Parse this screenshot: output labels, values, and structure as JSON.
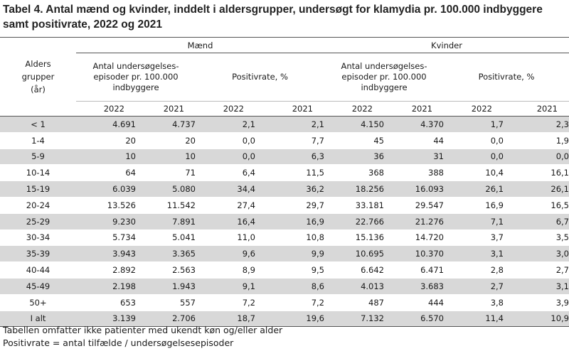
{
  "title": "Tabel 4. Antal mænd og kvinder, inddelt i aldersgrupper, undersøgt for klamydia pr. 100.000 indbyggere samt positivrate, 2022 og 2021",
  "headers": {
    "men": "Mænd",
    "women": "Kvinder",
    "age_group": "Alders grupper (år)",
    "episodes": "Antal undersøgelses-episoder pr. 100.000 indbyggere",
    "positivrate": "Positivrate, %",
    "y2022": "2022",
    "y2021": "2021"
  },
  "rows": [
    {
      "age": "< 1",
      "m_ep22": "4.691",
      "m_ep21": "4.737",
      "m_pr22": "2,1",
      "m_pr21": "2,1",
      "f_ep22": "4.150",
      "f_ep21": "4.370",
      "f_pr22": "1,7",
      "f_pr21": "2,3"
    },
    {
      "age": "1-4",
      "m_ep22": "20",
      "m_ep21": "20",
      "m_pr22": "0,0",
      "m_pr21": "7,7",
      "f_ep22": "45",
      "f_ep21": "44",
      "f_pr22": "0,0",
      "f_pr21": "1,9"
    },
    {
      "age": "5-9",
      "m_ep22": "10",
      "m_ep21": "10",
      "m_pr22": "0,0",
      "m_pr21": "6,3",
      "f_ep22": "36",
      "f_ep21": "31",
      "f_pr22": "0,0",
      "f_pr21": "0,0"
    },
    {
      "age": "10-14",
      "m_ep22": "64",
      "m_ep21": "71",
      "m_pr22": "6,4",
      "m_pr21": "11,5",
      "f_ep22": "368",
      "f_ep21": "388",
      "f_pr22": "10,4",
      "f_pr21": "16,1"
    },
    {
      "age": "15-19",
      "m_ep22": "6.039",
      "m_ep21": "5.080",
      "m_pr22": "34,4",
      "m_pr21": "36,2",
      "f_ep22": "18.256",
      "f_ep21": "16.093",
      "f_pr22": "26,1",
      "f_pr21": "26,1"
    },
    {
      "age": "20-24",
      "m_ep22": "13.526",
      "m_ep21": "11.542",
      "m_pr22": "27,4",
      "m_pr21": "29,7",
      "f_ep22": "33.181",
      "f_ep21": "29.547",
      "f_pr22": "16,9",
      "f_pr21": "16,5"
    },
    {
      "age": "25-29",
      "m_ep22": "9.230",
      "m_ep21": "7.891",
      "m_pr22": "16,4",
      "m_pr21": "16,9",
      "f_ep22": "22.766",
      "f_ep21": "21.276",
      "f_pr22": "7,1",
      "f_pr21": "6,7"
    },
    {
      "age": "30-34",
      "m_ep22": "5.734",
      "m_ep21": "5.041",
      "m_pr22": "11,0",
      "m_pr21": "10,8",
      "f_ep22": "15.136",
      "f_ep21": "14.720",
      "f_pr22": "3,7",
      "f_pr21": "3,5"
    },
    {
      "age": "35-39",
      "m_ep22": "3.943",
      "m_ep21": "3.365",
      "m_pr22": "9,6",
      "m_pr21": "9,9",
      "f_ep22": "10.695",
      "f_ep21": "10.370",
      "f_pr22": "3,1",
      "f_pr21": "3,0"
    },
    {
      "age": "40-44",
      "m_ep22": "2.892",
      "m_ep21": "2.563",
      "m_pr22": "8,9",
      "m_pr21": "9,5",
      "f_ep22": "6.642",
      "f_ep21": "6.471",
      "f_pr22": "2,8",
      "f_pr21": "2,7"
    },
    {
      "age": "45-49",
      "m_ep22": "2.198",
      "m_ep21": "1.943",
      "m_pr22": "9,1",
      "m_pr21": "8,6",
      "f_ep22": "4.013",
      "f_ep21": "3.683",
      "f_pr22": "2,7",
      "f_pr21": "3,1"
    },
    {
      "age": "50+",
      "m_ep22": "653",
      "m_ep21": "557",
      "m_pr22": "7,2",
      "m_pr21": "7,2",
      "f_ep22": "487",
      "f_ep21": "444",
      "f_pr22": "3,8",
      "f_pr21": "3,9"
    },
    {
      "age": "I alt",
      "m_ep22": "3.139",
      "m_ep21": "2.706",
      "m_pr22": "18,7",
      "m_pr21": "19,6",
      "f_ep22": "7.132",
      "f_ep21": "6.570",
      "f_pr22": "11,4",
      "f_pr21": "10,9"
    }
  ],
  "footnotes": [
    "Tabellen omfatter ikke patienter med ukendt køn og/eller alder",
    "Positivrate = antal tilfælde / undersøgelsesepisoder"
  ],
  "colors": {
    "row_shade": "#d8d8d8",
    "rule": "#555555"
  }
}
